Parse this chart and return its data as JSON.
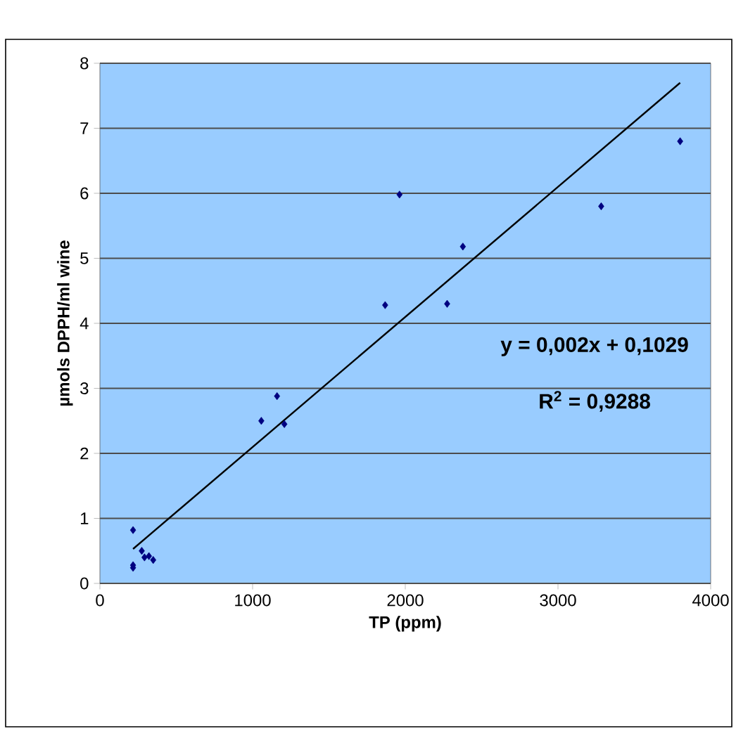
{
  "chart_data": {
    "type": "scatter",
    "xlabel": "TP (ppm)",
    "ylabel": "µmols DPPH/ml wine",
    "xlim": [
      0,
      4000
    ],
    "xticks": [
      0,
      1000,
      2000,
      3000,
      4000
    ],
    "ylim": [
      0,
      8
    ],
    "yticks": [
      0,
      1,
      2,
      3,
      4,
      5,
      6,
      7,
      8
    ],
    "grid": "y",
    "marker": "diamond",
    "series": [
      {
        "color": "#000080",
        "x": [
          217,
          217,
          217,
          274,
          292,
          321,
          349,
          1057,
          1160,
          1208,
          1868,
          1962,
          2274,
          2377,
          3283,
          3800
        ],
        "values": [
          0.82,
          0.28,
          0.24,
          0.5,
          0.4,
          0.42,
          0.36,
          2.5,
          2.88,
          2.45,
          4.28,
          5.98,
          4.3,
          5.18,
          5.8,
          6.8
        ]
      },
      {
        "type": "line",
        "color": "#000000",
        "marker": "none",
        "x": [
          217,
          3800
        ],
        "values": [
          0.53,
          7.7
        ]
      }
    ],
    "annotations": [
      "y = 0,002x + 0,1029",
      "R$^{2}$ = 0,9288"
    ]
  }
}
